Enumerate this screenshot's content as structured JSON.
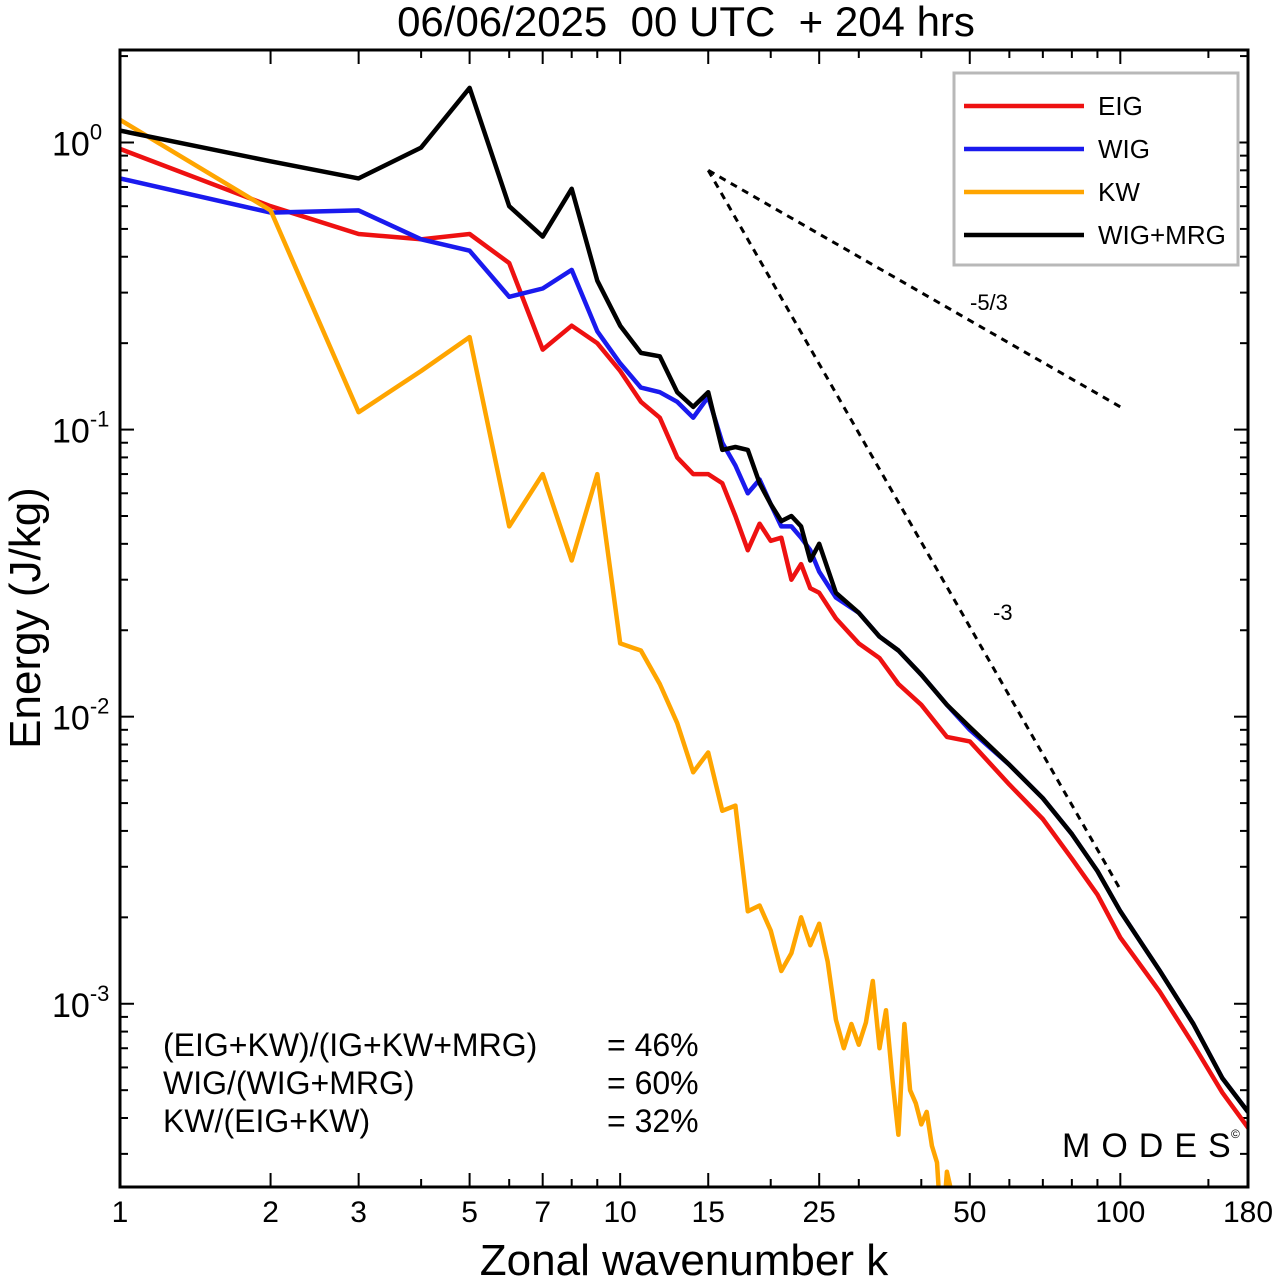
{
  "chart_data": {
    "type": "line",
    "title": "06/06/2025  00 UTC  + 204 hrs",
    "xlabel": "Zonal wavenumber k",
    "ylabel": "Energy (J/kg)",
    "x_scale": "log",
    "y_scale": "log",
    "xlim": [
      1,
      180
    ],
    "ylim": [
      0.00023,
      2.1
    ],
    "x_ticks": [
      1,
      2,
      3,
      5,
      7,
      10,
      15,
      25,
      50,
      100,
      180
    ],
    "x_tick_labels": [
      "1",
      "2",
      "3",
      "5",
      "7",
      "10",
      "15",
      "25",
      "50",
      "100",
      "180"
    ],
    "y_ticks": [
      {
        "value": 1,
        "base": "10",
        "exp": "0"
      },
      {
        "value": 0.1,
        "base": "10",
        "exp": "-1"
      },
      {
        "value": 0.01,
        "base": "10",
        "exp": "-2"
      },
      {
        "value": 0.001,
        "base": "10",
        "exp": "-3"
      }
    ],
    "grid": false,
    "legend_position": "top-right",
    "series": [
      {
        "name": "EIG",
        "color": "#ee1111",
        "points": [
          [
            1,
            0.95
          ],
          [
            2,
            0.6
          ],
          [
            3,
            0.48
          ],
          [
            4,
            0.46
          ],
          [
            5,
            0.48
          ],
          [
            6,
            0.38
          ],
          [
            7,
            0.19
          ],
          [
            8,
            0.23
          ],
          [
            9,
            0.2
          ],
          [
            10,
            0.16
          ],
          [
            11,
            0.125
          ],
          [
            12,
            0.11
          ],
          [
            13,
            0.08
          ],
          [
            14,
            0.07
          ],
          [
            15,
            0.07
          ],
          [
            16,
            0.065
          ],
          [
            17,
            0.05
          ],
          [
            18,
            0.038
          ],
          [
            19,
            0.047
          ],
          [
            20,
            0.041
          ],
          [
            21,
            0.042
          ],
          [
            22,
            0.03
          ],
          [
            23,
            0.034
          ],
          [
            24,
            0.028
          ],
          [
            25,
            0.027
          ],
          [
            27,
            0.022
          ],
          [
            30,
            0.018
          ],
          [
            33,
            0.016
          ],
          [
            36,
            0.013
          ],
          [
            40,
            0.011
          ],
          [
            45,
            0.0085
          ],
          [
            50,
            0.0082
          ],
          [
            60,
            0.0058
          ],
          [
            70,
            0.0044
          ],
          [
            80,
            0.0032
          ],
          [
            90,
            0.0024
          ],
          [
            100,
            0.0017
          ],
          [
            120,
            0.0011
          ],
          [
            140,
            0.00072
          ],
          [
            160,
            0.00049
          ],
          [
            180,
            0.00037
          ]
        ]
      },
      {
        "name": "WIG",
        "color": "#1a1aee",
        "points": [
          [
            1,
            0.75
          ],
          [
            2,
            0.57
          ],
          [
            3,
            0.58
          ],
          [
            4,
            0.46
          ],
          [
            5,
            0.42
          ],
          [
            6,
            0.29
          ],
          [
            7,
            0.31
          ],
          [
            8,
            0.36
          ],
          [
            9,
            0.22
          ],
          [
            10,
            0.17
          ],
          [
            11,
            0.14
          ],
          [
            12,
            0.135
          ],
          [
            13,
            0.125
          ],
          [
            14,
            0.11
          ],
          [
            15,
            0.13
          ],
          [
            16,
            0.09
          ],
          [
            17,
            0.075
          ],
          [
            18,
            0.06
          ],
          [
            19,
            0.067
          ],
          [
            20,
            0.055
          ],
          [
            21,
            0.046
          ],
          [
            22,
            0.046
          ],
          [
            23,
            0.042
          ],
          [
            24,
            0.038
          ],
          [
            25,
            0.032
          ],
          [
            27,
            0.026
          ],
          [
            30,
            0.023
          ],
          [
            33,
            0.019
          ],
          [
            36,
            0.017
          ],
          [
            40,
            0.014
          ],
          [
            45,
            0.011
          ],
          [
            50,
            0.009
          ],
          [
            60,
            0.0068
          ],
          [
            70,
            0.0052
          ],
          [
            80,
            0.0039
          ],
          [
            90,
            0.0029
          ],
          [
            100,
            0.0021
          ],
          [
            120,
            0.0013
          ],
          [
            140,
            0.00085
          ],
          [
            160,
            0.00055
          ],
          [
            180,
            0.00042
          ]
        ]
      },
      {
        "name": "KW",
        "color": "#ffa500",
        "points": [
          [
            1,
            1.2
          ],
          [
            2,
            0.58
          ],
          [
            3,
            0.115
          ],
          [
            4,
            0.16
          ],
          [
            5,
            0.21
          ],
          [
            6,
            0.046
          ],
          [
            7,
            0.07
          ],
          [
            8,
            0.035
          ],
          [
            9,
            0.07
          ],
          [
            10,
            0.018
          ],
          [
            11,
            0.017
          ],
          [
            12,
            0.013
          ],
          [
            13,
            0.0095
          ],
          [
            14,
            0.0064
          ],
          [
            15,
            0.0075
          ],
          [
            16,
            0.0047
          ],
          [
            17,
            0.0049
          ],
          [
            18,
            0.0021
          ],
          [
            19,
            0.0022
          ],
          [
            20,
            0.0018
          ],
          [
            21,
            0.0013
          ],
          [
            22,
            0.0015
          ],
          [
            23,
            0.002
          ],
          [
            24,
            0.0016
          ],
          [
            25,
            0.0019
          ],
          [
            26,
            0.0014
          ],
          [
            27,
            0.00088
          ],
          [
            28,
            0.0007
          ],
          [
            29,
            0.00085
          ],
          [
            30,
            0.00072
          ],
          [
            31,
            0.00086
          ],
          [
            32,
            0.0012
          ],
          [
            33,
            0.0007
          ],
          [
            34,
            0.00095
          ],
          [
            35,
            0.00055
          ],
          [
            36,
            0.00035
          ],
          [
            37,
            0.00085
          ],
          [
            38,
            0.0005
          ],
          [
            39,
            0.00045
          ],
          [
            40,
            0.00038
          ],
          [
            41,
            0.00042
          ],
          [
            42,
            0.00032
          ],
          [
            43,
            0.00028
          ],
          [
            44,
            0.00015
          ],
          [
            45,
            0.00026
          ],
          [
            46,
            0.00022
          ],
          [
            47,
            0.00016
          ]
        ]
      },
      {
        "name": "WIG+MRG",
        "color": "#000000",
        "points": [
          [
            1,
            1.1
          ],
          [
            2,
            0.86
          ],
          [
            3,
            0.75
          ],
          [
            4,
            0.96
          ],
          [
            5,
            1.55
          ],
          [
            6,
            0.6
          ],
          [
            7,
            0.47
          ],
          [
            8,
            0.69
          ],
          [
            9,
            0.33
          ],
          [
            10,
            0.23
          ],
          [
            11,
            0.185
          ],
          [
            12,
            0.18
          ],
          [
            13,
            0.135
          ],
          [
            14,
            0.12
          ],
          [
            15,
            0.135
          ],
          [
            16,
            0.085
          ],
          [
            17,
            0.087
          ],
          [
            18,
            0.085
          ],
          [
            19,
            0.065
          ],
          [
            20,
            0.055
          ],
          [
            21,
            0.048
          ],
          [
            22,
            0.05
          ],
          [
            23,
            0.046
          ],
          [
            24,
            0.035
          ],
          [
            25,
            0.04
          ],
          [
            27,
            0.027
          ],
          [
            30,
            0.023
          ],
          [
            33,
            0.019
          ],
          [
            36,
            0.017
          ],
          [
            40,
            0.014
          ],
          [
            45,
            0.011
          ],
          [
            50,
            0.0092
          ],
          [
            60,
            0.0068
          ],
          [
            70,
            0.0052
          ],
          [
            80,
            0.0039
          ],
          [
            90,
            0.0029
          ],
          [
            100,
            0.0021
          ],
          [
            120,
            0.0013
          ],
          [
            140,
            0.00085
          ],
          [
            160,
            0.00055
          ],
          [
            180,
            0.00042
          ]
        ]
      }
    ],
    "reference_slopes": [
      {
        "label": "-5/3",
        "start": [
          15,
          0.8
        ],
        "end": [
          100,
          0.12
        ]
      },
      {
        "label": "-3",
        "start": [
          15,
          0.8
        ],
        "end": [
          100,
          0.0025
        ]
      }
    ],
    "annotations": [
      {
        "text": "(EIG+KW)/(IG+KW+MRG)",
        "value": "= 46%"
      },
      {
        "text": "WIG/(WIG+MRG)",
        "value": "= 60%"
      },
      {
        "text": "KW/(EIG+KW)",
        "value": "= 32%"
      }
    ],
    "watermark": "MODES",
    "watermark_mark": "©"
  }
}
